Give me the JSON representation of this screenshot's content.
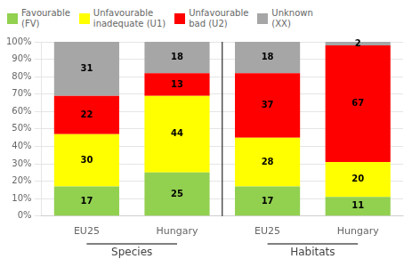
{
  "chart_data": {
    "type": "bar",
    "stacked": true,
    "categories": [
      "EU25",
      "Hungary",
      "EU25",
      "Hungary"
    ],
    "group_labels": [
      "Species",
      "Habitats"
    ],
    "series": [
      {
        "name": "Favourable\n(FV)",
        "color": "#92d050",
        "values": [
          17,
          25,
          17,
          11
        ]
      },
      {
        "name": "Unfavourable\ninadequate (U1)",
        "color": "#ffff00",
        "values": [
          30,
          44,
          28,
          20
        ]
      },
      {
        "name": "Unfavourable\nbad (U2)",
        "color": "#ff0000",
        "values": [
          22,
          13,
          37,
          67
        ]
      },
      {
        "name": "Unknown\n(XX)",
        "color": "#a6a6a6",
        "values": [
          31,
          18,
          18,
          2
        ]
      }
    ],
    "ylim": [
      0,
      100
    ],
    "yticks": [
      {
        "value": 0,
        "label": "0%"
      },
      {
        "value": 10,
        "label": "10%"
      },
      {
        "value": 20,
        "label": "20%"
      },
      {
        "value": 30,
        "label": "30%"
      },
      {
        "value": 40,
        "label": "40%"
      },
      {
        "value": 50,
        "label": "50%"
      },
      {
        "value": 60,
        "label": "60%"
      },
      {
        "value": 70,
        "label": "70%"
      },
      {
        "value": 80,
        "label": "80%"
      },
      {
        "value": 90,
        "label": "90%"
      },
      {
        "value": 100,
        "label": "100%"
      }
    ],
    "grid": true,
    "data_labels": true,
    "legend": "top"
  }
}
